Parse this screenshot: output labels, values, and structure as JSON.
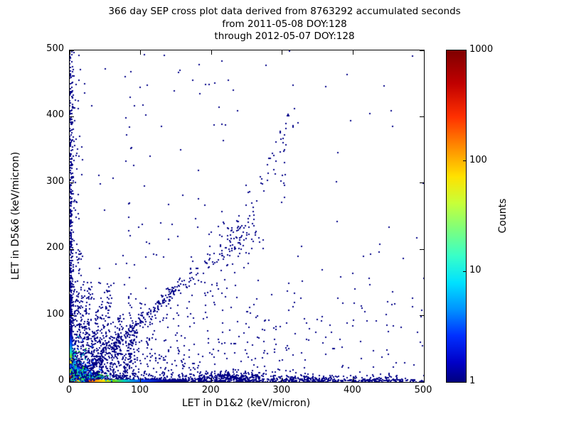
{
  "title": {
    "line1": "366 day SEP cross plot data derived from 8763292 accumulated seconds",
    "line2": "from 2011-05-08 DOY:128",
    "line3": "through 2012-05-07 DOY:128"
  },
  "axes": {
    "xlabel": "LET in D1&2 (keV/micron)",
    "ylabel": "LET in D5&6 (keV/micron)",
    "xticks": [
      0,
      100,
      200,
      300,
      400,
      500
    ],
    "yticks": [
      0,
      100,
      200,
      300,
      400,
      500
    ],
    "xlim": [
      0,
      500
    ],
    "ylim": [
      0,
      500
    ]
  },
  "colorbar": {
    "label": "Counts",
    "ticks": [
      1,
      10,
      100,
      1000
    ],
    "scale": "log",
    "colormap": "jet",
    "stops": [
      [
        0,
        "#7f0000"
      ],
      [
        0.1,
        "#c00000"
      ],
      [
        0.2,
        "#ff3000"
      ],
      [
        0.3,
        "#ff9400"
      ],
      [
        0.38,
        "#ffe100"
      ],
      [
        0.46,
        "#c8ff38"
      ],
      [
        0.54,
        "#7dff7d"
      ],
      [
        0.62,
        "#38ffc8"
      ],
      [
        0.7,
        "#00e1ff"
      ],
      [
        0.78,
        "#0094ff"
      ],
      [
        0.86,
        "#0030ff"
      ],
      [
        0.94,
        "#0000c8"
      ],
      [
        1,
        "#00007f"
      ]
    ]
  },
  "chart_data": {
    "type": "heatmap",
    "subtype": "2d-histogram-cross-plot",
    "title": "366 day SEP cross plot data derived from 8763292 accumulated seconds",
    "xlabel": "LET in D1&2 (keV/micron)",
    "ylabel": "LET in D5&6 (keV/micron)",
    "xlim": [
      0,
      500
    ],
    "ylim": [
      0,
      500
    ],
    "counts_range": [
      1,
      1000
    ],
    "counts_scale": "log",
    "legend_position": "right-colorbar",
    "grid": false,
    "point_color": "#000087",
    "seed": 1234,
    "features": {
      "hot_core": "dark-red maximum (~1000 counts) at origin, rainbow rings out to ~28 keV/micron",
      "axis_bands": "dense bands hugging x=0 and y=0 out to full range",
      "diagonal_band": "dense blue band from origin along 45-degree line to ~(150,140), sparse continuation to (315,400)",
      "streak_fan": "fan of near-vertical streaks at x=12-90 reaching y=80-210",
      "mid_cluster": "loose cluster near (235,218)"
    },
    "gradients": {
      "bottom_strip": {
        "x0": 0,
        "x1": 165,
        "y0": 0,
        "y1": 3.6,
        "stops": [
          [
            0,
            "#8b0000"
          ],
          [
            0.1,
            "#d40000"
          ],
          [
            0.16,
            "#ff4500"
          ],
          [
            0.22,
            "#ff9900"
          ],
          [
            0.29,
            "#ffe400"
          ],
          [
            0.37,
            "#7ddd00"
          ],
          [
            0.47,
            "#00d4c8"
          ],
          [
            0.62,
            "#0044ff"
          ],
          [
            0.82,
            "#000095"
          ],
          [
            1,
            "#000082"
          ]
        ]
      },
      "left_strip": {
        "x0": 0,
        "x1": 3.6,
        "y0": 0,
        "y1": 82,
        "stops": [
          [
            0,
            "#8b0000"
          ],
          [
            0.1,
            "#d40000"
          ],
          [
            0.18,
            "#ff4500"
          ],
          [
            0.26,
            "#ff9900"
          ],
          [
            0.34,
            "#ffe400"
          ],
          [
            0.44,
            "#7ddd00"
          ],
          [
            0.56,
            "#00d4c8"
          ],
          [
            0.72,
            "#0044ff"
          ],
          [
            0.9,
            "#000095"
          ],
          [
            1,
            "#000082"
          ]
        ]
      },
      "core": {
        "cx": 0,
        "cy": 0,
        "r": 28,
        "stops": [
          [
            0,
            "#7a0000"
          ],
          [
            0.2,
            "#c80000"
          ],
          [
            0.34,
            "#ff6a00"
          ],
          [
            0.47,
            "#ffe600"
          ],
          [
            0.59,
            "#66dc00"
          ],
          [
            0.7,
            "#00d8d8"
          ],
          [
            0.81,
            "#0f4cff"
          ],
          [
            0.92,
            "#0000a0"
          ],
          [
            1,
            "rgba(0,0,130,0)"
          ]
        ]
      }
    },
    "clusters": [
      {
        "type": "expband_h",
        "count": 900,
        "sy": 2.2,
        "mix": 0.38,
        "scale": 130,
        "layer": 1
      },
      {
        "type": "expband_h",
        "count": 320,
        "sy": 7,
        "mix": 0.25,
        "scale": 150,
        "layer": 1
      },
      {
        "type": "gauss",
        "cx": 228,
        "cy": 4,
        "sx": 24,
        "sy": 6,
        "absy": true,
        "count": 210,
        "layer": 1
      },
      {
        "type": "gauss",
        "cx": 447,
        "cy": 2,
        "sx": 28,
        "sy": 3,
        "absy": true,
        "count": 70,
        "layer": 1
      },
      {
        "type": "gauss",
        "cx": 335,
        "cy": 3,
        "sx": 20,
        "sy": 4,
        "absy": true,
        "count": 80,
        "layer": 1
      },
      {
        "type": "expband_v",
        "count": 520,
        "sx": 2.2,
        "mix": 0.32,
        "scale": 100,
        "layer": 1
      },
      {
        "type": "expband_v",
        "count": 240,
        "sx": 7,
        "mix": 0.22,
        "scale": 130,
        "layer": 1
      },
      {
        "type": "gauss",
        "cx": 0,
        "cy": 0,
        "sx": 85,
        "sy": 55,
        "absx": true,
        "absy": true,
        "count": 650,
        "layer": 1
      },
      {
        "type": "streak",
        "x0": 16,
        "y0": 13,
        "x1": 150,
        "y1": 140,
        "sigma": 4,
        "count": 230,
        "layer": 1
      },
      {
        "type": "streak",
        "x0": 150,
        "y0": 140,
        "x1": 235,
        "y1": 210,
        "sigma": 6,
        "count": 55,
        "layer": 1
      },
      {
        "type": "gauss",
        "cx": 237,
        "cy": 218,
        "sx": 15,
        "sy": 18,
        "count": 75,
        "layer": 1
      },
      {
        "type": "streak",
        "x0": 245,
        "y0": 230,
        "x1": 315,
        "y1": 398,
        "sigma": 7,
        "count": 40,
        "layer": 1
      },
      {
        "type": "streak",
        "x0": 20,
        "y0": 8,
        "x1": 28,
        "y1": 150,
        "sigma": 2.5,
        "count": 85,
        "layer": 1
      },
      {
        "type": "streak",
        "x0": 31,
        "y0": 8,
        "x1": 41,
        "y1": 118,
        "sigma": 2.5,
        "count": 65,
        "layer": 1
      },
      {
        "type": "streak",
        "x0": 43,
        "y0": 8,
        "x1": 56,
        "y1": 148,
        "sigma": 3,
        "count": 75,
        "layer": 1
      },
      {
        "type": "streak",
        "x0": 58,
        "y0": 8,
        "x1": 73,
        "y1": 100,
        "sigma": 3,
        "count": 48,
        "layer": 1
      },
      {
        "type": "streak",
        "x0": 76,
        "y0": 8,
        "x1": 92,
        "y1": 78,
        "sigma": 3,
        "count": 38,
        "layer": 1
      },
      {
        "type": "streak",
        "x0": 12,
        "y0": 10,
        "x1": 15,
        "y1": 210,
        "sigma": 2,
        "count": 55,
        "layer": 1
      },
      {
        "type": "streak",
        "x0": 83,
        "y0": 60,
        "x1": 87,
        "y1": 485,
        "sigma": 2,
        "count": 13,
        "layer": 1
      },
      {
        "type": "streak",
        "x0": 298,
        "y0": 255,
        "x1": 307,
        "y1": 420,
        "sigma": 3.5,
        "count": 15,
        "layer": 1
      },
      {
        "type": "gauss",
        "cx": 0,
        "cy": 325,
        "sx": 5,
        "sy": 100,
        "absx": true,
        "count": 60,
        "layer": 1
      },
      {
        "type": "uniform",
        "x0": 0,
        "x1": 250,
        "y0": 150,
        "y1": 500,
        "count": 60,
        "layer": 1
      },
      {
        "type": "uniform",
        "x0": 0,
        "x1": 500,
        "y0": 0,
        "y1": 150,
        "count": 80,
        "layer": 1
      },
      {
        "type": "uniform",
        "x0": 250,
        "x1": 500,
        "y0": 0,
        "y1": 250,
        "count": 50,
        "layer": 1
      },
      {
        "type": "uniform",
        "x0": 0,
        "x1": 500,
        "y0": 0,
        "y1": 500,
        "count": 60,
        "layer": 1
      },
      {
        "type": "gauss",
        "cx": 225,
        "cy": 0,
        "sx": 70,
        "sy": 95,
        "absy": true,
        "count": 110,
        "layer": 1
      },
      {
        "type": "gauss",
        "cx": 25,
        "cy": 6,
        "sx": 14,
        "sy": 3.5,
        "absy": true,
        "count": 170,
        "layer": 2,
        "palette": [
          [
            "#00d8d8",
            0.35
          ],
          [
            "#2fbf2f",
            0.15
          ],
          [
            "#1e7bff",
            0.25
          ],
          [
            "#000090",
            0.25
          ]
        ]
      },
      {
        "type": "gauss",
        "cx": 4,
        "cy": 24,
        "sx": 2.6,
        "sy": 12,
        "absx": true,
        "count": 120,
        "layer": 2,
        "palette": [
          [
            "#00d8d8",
            0.3
          ],
          [
            "#2fbf2f",
            0.15
          ],
          [
            "#1e7bff",
            0.3
          ],
          [
            "#000090",
            0.25
          ]
        ]
      },
      {
        "type": "streak",
        "x0": 4,
        "y0": 4,
        "x1": 22,
        "y1": 20,
        "sigma": 2,
        "count": 80,
        "layer": 2,
        "palette": [
          [
            "#00d4d4",
            0.5
          ],
          [
            "#28b428",
            0.2
          ],
          [
            "#1060ff",
            0.3
          ]
        ]
      },
      {
        "type": "gauss",
        "cx": 0,
        "cy": 0,
        "sx": 26,
        "sy": 22,
        "absx": true,
        "absy": true,
        "count": 260,
        "layer": 2,
        "palette": [
          [
            "#000085",
            0.62
          ],
          [
            "#0048ff",
            0.18
          ],
          [
            "#00b4c8",
            0.12
          ],
          [
            "#3cc83c",
            0.08
          ]
        ]
      }
    ]
  }
}
